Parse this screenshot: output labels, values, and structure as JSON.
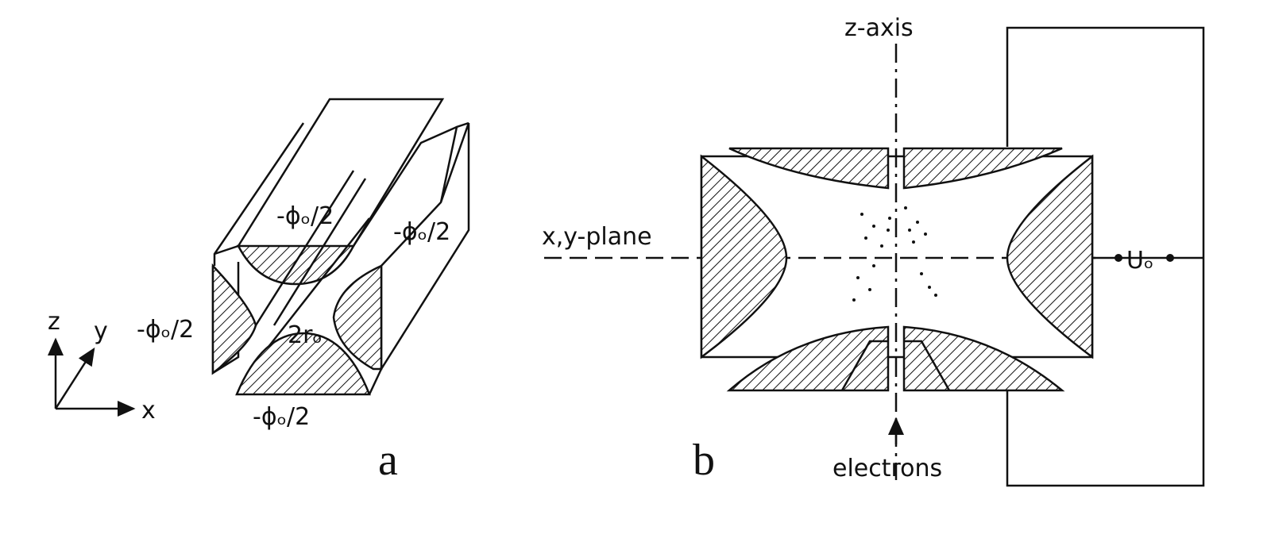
{
  "panel_a": {
    "labels": {
      "top": "-ϕₒ/2",
      "right": "-ϕₒ/2",
      "left": "-ϕₒ/2",
      "bottom": "-ϕₒ/2",
      "gap": "2rₒ"
    },
    "axes": {
      "z": "z",
      "y": "y",
      "x": "x"
    },
    "letter": "a"
  },
  "panel_b": {
    "z_axis": "z-axis",
    "xy_plane": "x,y-plane",
    "voltage": "Uₒ",
    "electrons": "electrons",
    "letter": "b"
  }
}
